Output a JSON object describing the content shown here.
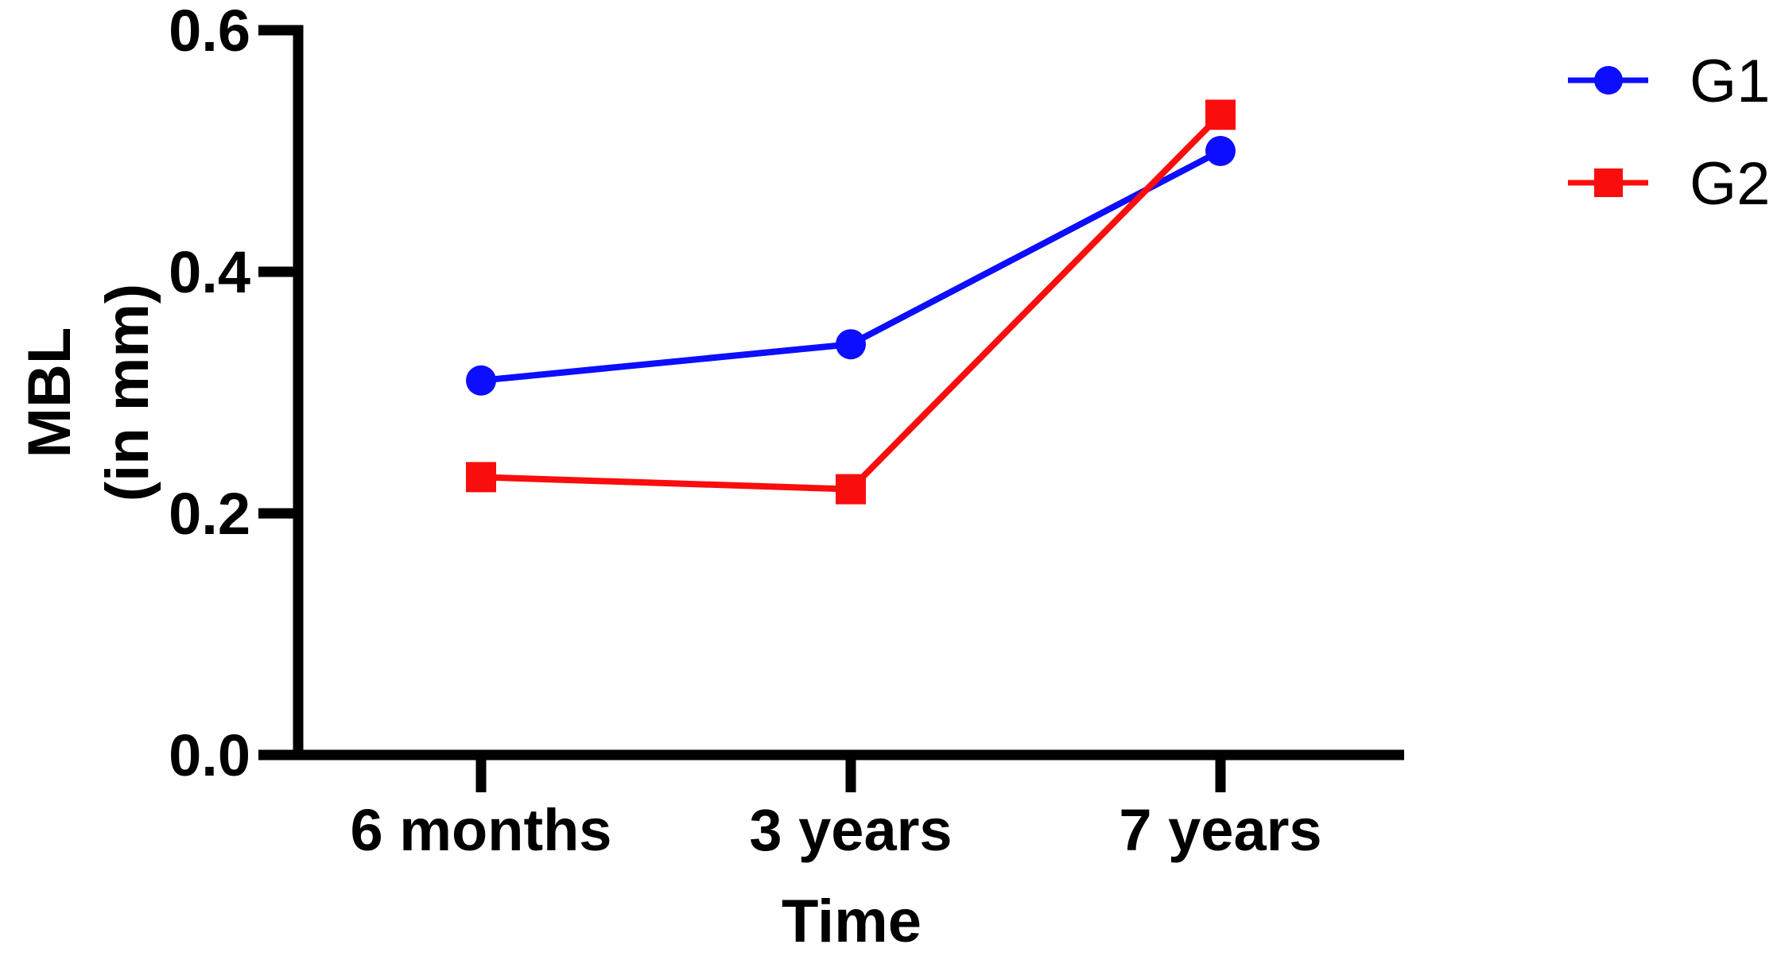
{
  "chart_data": {
    "type": "line",
    "title": "",
    "xlabel": "Time",
    "ylabel": "MBL (in mm)",
    "ylabel_lines": [
      "MBL",
      "(in mm)"
    ],
    "categories": [
      "6 months",
      "3 years",
      "7 years"
    ],
    "series": [
      {
        "name": "G1",
        "marker": "circle",
        "color": "#0d0dff",
        "values": [
          0.31,
          0.34,
          0.5
        ]
      },
      {
        "name": "G2",
        "marker": "square",
        "color": "#fa0d0d",
        "values": [
          0.23,
          0.22,
          0.53
        ]
      }
    ],
    "ylim": [
      0,
      0.6
    ],
    "yticks": [
      0,
      0.2,
      0.4,
      0.6
    ],
    "ytick_labels": [
      "0.0",
      "0.2",
      "0.4",
      "0.6"
    ],
    "grid": false,
    "legend_position": "top-right",
    "axis_color": "#000000",
    "background": "#ffffff"
  }
}
